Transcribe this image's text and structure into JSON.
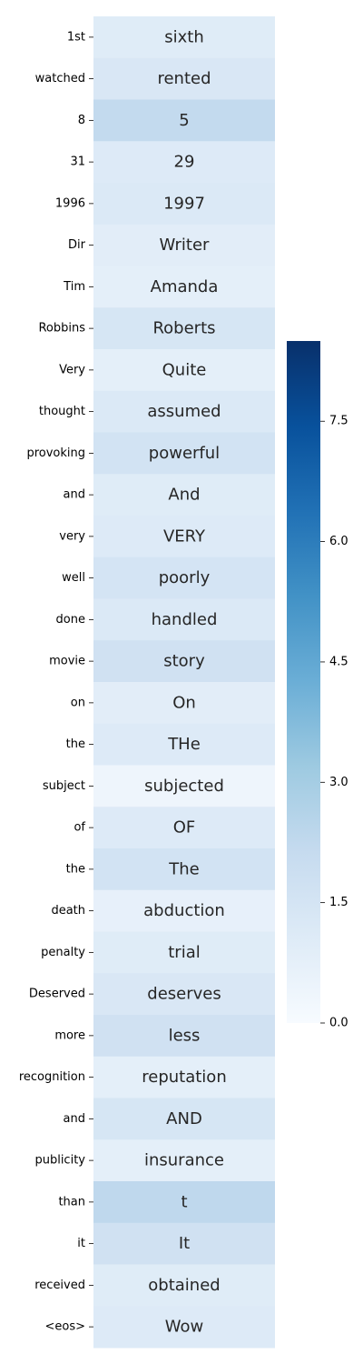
{
  "chart_data": {
    "type": "heatmap",
    "title": "",
    "xlabel": "",
    "ylabel": "",
    "colormap": "Blues",
    "colorbar": {
      "min": 0.0,
      "max": 8.5,
      "ticks": [
        "0.0",
        "1.5",
        "3.0",
        "4.5",
        "6.0",
        "7.5"
      ],
      "tick_values": [
        0.0,
        1.5,
        3.0,
        4.5,
        6.0,
        7.5
      ]
    },
    "rows": [
      {
        "label": "1st",
        "annotation": "sixth",
        "value": 1.0
      },
      {
        "label": "watched",
        "annotation": "rented",
        "value": 1.3
      },
      {
        "label": "8",
        "annotation": "5",
        "value": 2.2
      },
      {
        "label": "31",
        "annotation": "29",
        "value": 1.1
      },
      {
        "label": "1996",
        "annotation": "1997",
        "value": 1.2
      },
      {
        "label": "Dir",
        "annotation": "Writer",
        "value": 0.9
      },
      {
        "label": "Tim",
        "annotation": "Amanda",
        "value": 0.8
      },
      {
        "label": "Robbins",
        "annotation": "Roberts",
        "value": 1.4
      },
      {
        "label": "Very",
        "annotation": "Quite",
        "value": 0.8
      },
      {
        "label": "thought",
        "annotation": "assumed",
        "value": 1.2
      },
      {
        "label": "provoking",
        "annotation": "powerful",
        "value": 1.6
      },
      {
        "label": "and",
        "annotation": "And",
        "value": 1.0
      },
      {
        "label": "very",
        "annotation": "VERY",
        "value": 1.1
      },
      {
        "label": "well",
        "annotation": "poorly",
        "value": 1.5
      },
      {
        "label": "done",
        "annotation": "handled",
        "value": 1.2
      },
      {
        "label": "movie",
        "annotation": "story",
        "value": 1.7
      },
      {
        "label": "on",
        "annotation": "On",
        "value": 0.9
      },
      {
        "label": "the",
        "annotation": "THe",
        "value": 1.1
      },
      {
        "label": "subject",
        "annotation": "subjected",
        "value": 0.4
      },
      {
        "label": "of",
        "annotation": "OF",
        "value": 1.1
      },
      {
        "label": "the",
        "annotation": "The",
        "value": 1.6
      },
      {
        "label": "death",
        "annotation": "abduction",
        "value": 0.7
      },
      {
        "label": "penalty",
        "annotation": "trial",
        "value": 1.0
      },
      {
        "label": "Deserved",
        "annotation": "deserves",
        "value": 1.3
      },
      {
        "label": "more",
        "annotation": "less",
        "value": 1.7
      },
      {
        "label": "recognition",
        "annotation": "reputation",
        "value": 0.8
      },
      {
        "label": "and",
        "annotation": "AND",
        "value": 1.4
      },
      {
        "label": "publicity",
        "annotation": "insurance",
        "value": 0.8
      },
      {
        "label": "than",
        "annotation": "t",
        "value": 2.3
      },
      {
        "label": "it",
        "annotation": "It",
        "value": 1.7
      },
      {
        "label": "received",
        "annotation": "obtained",
        "value": 1.0
      },
      {
        "label": "<eos>",
        "annotation": "Wow",
        "value": 1.1
      }
    ]
  }
}
